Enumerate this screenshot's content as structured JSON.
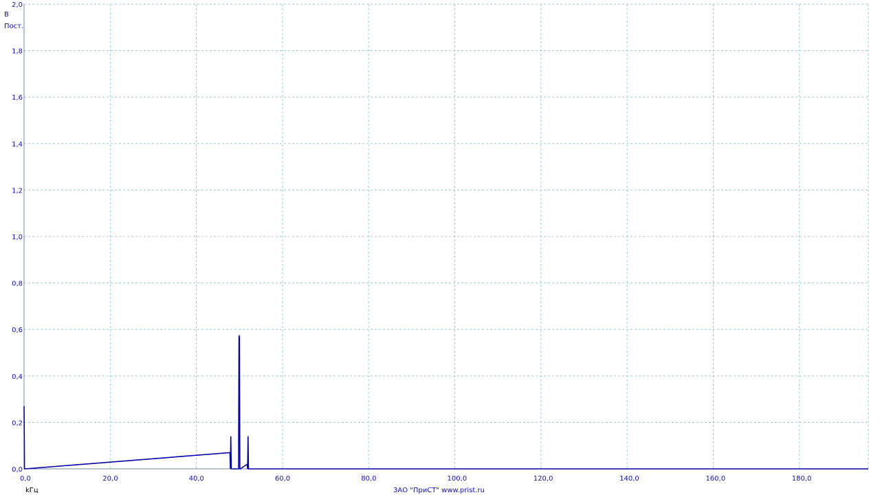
{
  "chart_data": {
    "type": "line",
    "title": "",
    "y_unit_label": "В",
    "y_mode_label": "Пост.",
    "xlabel": "kГц",
    "credit": "ЗАО \"ПриСТ\"   www.prist.ru",
    "xlim": [
      0,
      196
    ],
    "ylim": [
      0,
      2
    ],
    "x_ticks": [
      "0,0",
      "20,0",
      "40,0",
      "60,0",
      "80,0",
      "100,0",
      "120,0",
      "140,0",
      "160,0",
      "180,0"
    ],
    "x_tick_values": [
      0,
      20,
      40,
      60,
      80,
      100,
      120,
      140,
      160,
      180
    ],
    "y_ticks": [
      "0,0",
      "0,2",
      "0,4",
      "0,6",
      "0,8",
      "1,0",
      "1,2",
      "1,4",
      "1,6",
      "1,8",
      "2,0"
    ],
    "y_tick_values": [
      0,
      0.2,
      0.4,
      0.6,
      0.8,
      1.0,
      1.2,
      1.4,
      1.6,
      1.8,
      2.0
    ],
    "grid": true,
    "colors": {
      "trace": "#0000aa",
      "grid": "#8fcfdf",
      "text": "#1010c0"
    },
    "series": [
      {
        "name": "",
        "x": [
          0,
          0.1,
          0.2,
          47.8,
          47.9,
          48.0,
          48.1,
          48.2,
          49.8,
          49.9,
          50.0,
          50.1,
          50.2,
          51.8,
          51.9,
          52.0,
          52.1,
          52.2
        ],
        "y": [
          0.27,
          0.0,
          0.0,
          0.07,
          0.0,
          0.14,
          0.0,
          0.0,
          0.0,
          0.575,
          0.565,
          0.0,
          0.0,
          0.02,
          0.0,
          0.14,
          0.0,
          0.0
        ]
      }
    ]
  }
}
